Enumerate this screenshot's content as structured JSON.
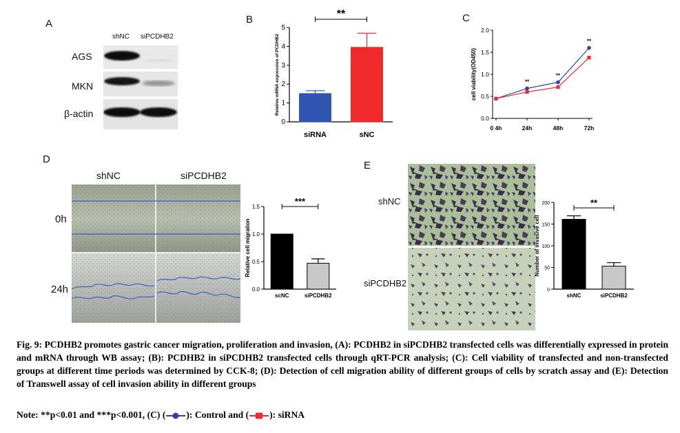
{
  "panels": {
    "a": {
      "letter": "A",
      "col_labels": [
        "shNC",
        "siPCDHB2"
      ],
      "row_labels": [
        "AGS",
        "MKN",
        "β-actin"
      ]
    },
    "d": {
      "letter": "D",
      "col_labels": [
        "shNC",
        "siPCDHB2"
      ],
      "row_labels": [
        "0h",
        "24h"
      ]
    },
    "e": {
      "letter": "E",
      "row_labels": [
        "shNC",
        "siPCDHB2"
      ]
    }
  },
  "chart_data": [
    {
      "id": "B",
      "type": "bar",
      "panel_letter": "B",
      "categories": [
        "siRNA",
        "sNC"
      ],
      "values": [
        1.5,
        3.95
      ],
      "errors": [
        0.15,
        0.75
      ],
      "colors": [
        "#2f55b0",
        "#f02a2a"
      ],
      "ylabel": "Relative mRNA expression of PCDHB2",
      "ylim": [
        0,
        5
      ],
      "yticks": [
        "0",
        "1",
        "2",
        "3",
        "4",
        "5"
      ],
      "significance": "**"
    },
    {
      "id": "C",
      "type": "line",
      "panel_letter": "C",
      "x": [
        "0 4h",
        "24h",
        "48h",
        "72h"
      ],
      "series": [
        {
          "values": [
            0.45,
            0.68,
            0.82,
            1.6
          ],
          "color": "#2d3fb5",
          "marker": "circle"
        },
        {
          "values": [
            0.45,
            0.6,
            0.71,
            1.38
          ],
          "color": "#f02a2a",
          "marker": "square"
        }
      ],
      "ylabel": "cell viability(OD450)",
      "ylim": [
        0,
        2.0
      ],
      "yticks": [
        "0.0",
        "0.5",
        "1.0",
        "1.5",
        "2.0"
      ],
      "annotations": [
        "**",
        "**",
        "**"
      ]
    },
    {
      "id": "D",
      "type": "bar",
      "panel_letter": "D",
      "categories": [
        "scNC",
        "siPCDHB2"
      ],
      "values": [
        1.0,
        0.47
      ],
      "errors": [
        0.0,
        0.08
      ],
      "colors": [
        "#000000",
        "#c8c8c8"
      ],
      "ylabel": "Relative cell migration",
      "ylim": [
        0,
        1.5
      ],
      "yticks": [
        "0.0",
        "0.5",
        "1.0",
        "1.5"
      ],
      "significance": "***"
    },
    {
      "id": "E",
      "type": "bar",
      "panel_letter": "E",
      "categories": [
        "shNC",
        "siPCDHB2"
      ],
      "values": [
        161,
        53
      ],
      "errors": [
        8,
        8
      ],
      "colors": [
        "#000000",
        "#c8c8c8"
      ],
      "ylabel": "Number of invasive cell",
      "ylim": [
        0,
        200
      ],
      "yticks": [
        "0",
        "50",
        "100",
        "150",
        "200"
      ],
      "significance": "**"
    }
  ],
  "caption": {
    "text": "Fig. 9: PCDHB2 promotes gastric cancer migration, proliferation and invasion, (A): PCDHB2 in siPCDHB2 transfected cells was differentially expressed in protein and mRNA through WB assay; (B): PCDHB2 in siPCDHB2 transfected cells through qRT-PCR analysis; (C): Cell viability of transfected and non-transfected groups at different time periods was determined by CCK-8; (D): Detection of cell migration ability of different groups of cells by scratch assay and (E): Detection of Transwell assay of cell invasion ability in different groups",
    "note_prefix": "Note: **p<0.01 and ***p<0.001, (C) (",
    "note_mid": "): Control and (",
    "note_suffix": "): siRNA"
  }
}
